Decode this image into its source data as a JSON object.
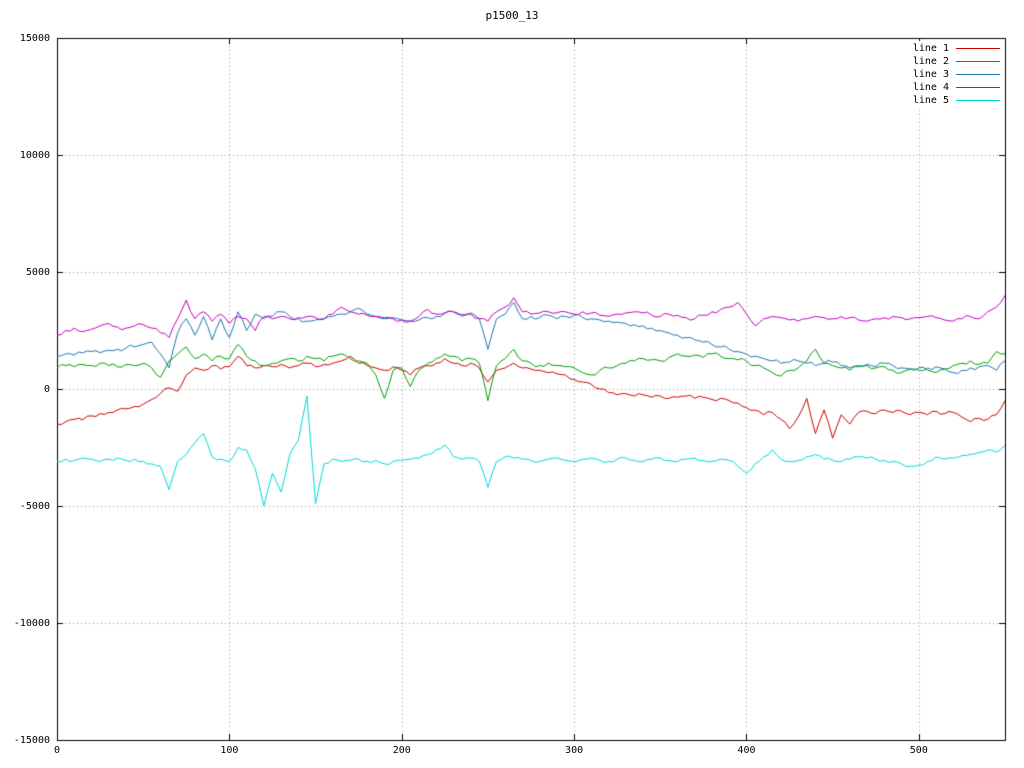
{
  "window": {
    "background": "#ffffff"
  },
  "chart_data": {
    "type": "line",
    "title": "p1500_13",
    "xlabel": "",
    "ylabel": "",
    "xlim": [
      0,
      550
    ],
    "ylim": [
      -15000,
      15000
    ],
    "xticks": [
      0,
      100,
      200,
      300,
      400,
      500
    ],
    "yticks": [
      -15000,
      -10000,
      -5000,
      0,
      5000,
      10000,
      15000
    ],
    "grid": "dotted",
    "grid_color": "#999999",
    "border_color": "#000000",
    "legend_position": "top-right",
    "x_start": 0,
    "x_step": 5,
    "series": [
      {
        "name": "line 1",
        "color": "#cc0000",
        "noise": 80,
        "values": [
          -1500,
          -1400,
          -1300,
          -1320,
          -1150,
          -1050,
          -1000,
          -900,
          -850,
          -750,
          -650,
          -450,
          -200,
          50,
          -100,
          600,
          900,
          800,
          1000,
          850,
          950,
          1400,
          1000,
          900,
          1000,
          950,
          1050,
          900,
          1000,
          1100,
          950,
          1050,
          1100,
          1200,
          1400,
          1100,
          1000,
          900,
          800,
          950,
          800,
          600,
          900,
          1000,
          1100,
          1300,
          1100,
          1000,
          1100,
          900,
          300,
          800,
          900,
          1100,
          900,
          850,
          800,
          700,
          650,
          600,
          400,
          300,
          200,
          0,
          -150,
          -250,
          -200,
          -300,
          -250,
          -350,
          -300,
          -400,
          -350,
          -300,
          -400,
          -350,
          -450,
          -400,
          -500,
          -600,
          -800,
          -900,
          -1100,
          -1000,
          -1300,
          -1700,
          -1200,
          -400,
          -1900,
          -900,
          -2100,
          -1100,
          -1500,
          -1000,
          -950,
          -1050,
          -900,
          -1000,
          -950,
          -1100,
          -1000,
          -1100,
          -950,
          -1050,
          -1000,
          -1200,
          -1400,
          -1250,
          -1300,
          -1100,
          -500
        ]
      },
      {
        "name": "line 2",
        "color": "#00a000",
        "noise": 100,
        "values": [
          900,
          1000,
          950,
          1050,
          1000,
          1100,
          1000,
          950,
          1050,
          1000,
          1100,
          900,
          500,
          1200,
          1500,
          1800,
          1300,
          1500,
          1200,
          1400,
          1300,
          1900,
          1400,
          1200,
          1000,
          1100,
          1200,
          1300,
          1200,
          1400,
          1300,
          1200,
          1400,
          1500,
          1300,
          1200,
          1100,
          600,
          -400,
          800,
          900,
          100,
          800,
          1100,
          1300,
          1500,
          1400,
          1200,
          1300,
          1100,
          -500,
          1000,
          1300,
          1700,
          1200,
          1100,
          1000,
          1100,
          1000,
          950,
          900,
          700,
          600,
          800,
          900,
          1000,
          1100,
          1200,
          1300,
          1250,
          1200,
          1350,
          1500,
          1400,
          1450,
          1350,
          1500,
          1400,
          1300,
          1250,
          1200,
          1000,
          900,
          700,
          550,
          800,
          900,
          1200,
          1700,
          1100,
          1000,
          900,
          800,
          950,
          1000,
          900,
          950,
          800,
          700,
          850,
          900,
          800,
          700,
          850,
          1000,
          1100,
          1200,
          1050,
          1100,
          1600,
          1500
        ]
      },
      {
        "name": "line 3",
        "color": "#1f77b4",
        "noise": 100,
        "values": [
          1400,
          1500,
          1450,
          1550,
          1600,
          1550,
          1650,
          1700,
          1750,
          1800,
          1900,
          2000,
          1500,
          900,
          2400,
          3000,
          2300,
          3100,
          2100,
          3000,
          2200,
          3300,
          2500,
          3200,
          3000,
          3100,
          3300,
          3100,
          3000,
          2900,
          2950,
          3000,
          3100,
          3200,
          3300,
          3450,
          3200,
          3100,
          3000,
          3050,
          2950,
          2900,
          2950,
          3050,
          3100,
          3250,
          3300,
          3200,
          3250,
          3000,
          1700,
          3000,
          3200,
          3700,
          3000,
          3100,
          3050,
          3150,
          3000,
          3100,
          3150,
          3050,
          3000,
          2950,
          2900,
          2850,
          2800,
          2750,
          2700,
          2600,
          2500,
          2400,
          2300,
          2200,
          2100,
          2000,
          1900,
          1800,
          1700,
          1600,
          1500,
          1400,
          1300,
          1200,
          1100,
          1150,
          1200,
          1100,
          1000,
          1100,
          1150,
          1000,
          900,
          1000,
          1050,
          950,
          1100,
          1000,
          900,
          850,
          800,
          900,
          950,
          850,
          700,
          800,
          900,
          950,
          1000,
          800,
          1200
        ]
      },
      {
        "name": "line 4",
        "color": "#bf00bf",
        "noise": 90,
        "values": [
          2300,
          2500,
          2600,
          2450,
          2550,
          2700,
          2800,
          2650,
          2600,
          2700,
          2750,
          2600,
          2400,
          2200,
          3000,
          3800,
          3000,
          3300,
          2900,
          3200,
          2800,
          3100,
          3000,
          2500,
          3100,
          3000,
          3100,
          3000,
          3050,
          3100,
          3050,
          3000,
          3200,
          3500,
          3300,
          3200,
          3150,
          3100,
          3050,
          3000,
          2950,
          2900,
          3100,
          3400,
          3200,
          3250,
          3300,
          3100,
          3200,
          3000,
          2900,
          3300,
          3500,
          3900,
          3300,
          3200,
          3250,
          3300,
          3250,
          3300,
          3200,
          3300,
          3250,
          3150,
          3100,
          3200,
          3250,
          3300,
          3250,
          3150,
          3100,
          3200,
          3150,
          3050,
          3000,
          3150,
          3300,
          3400,
          3500,
          3700,
          3200,
          2700,
          3000,
          3100,
          3050,
          2950,
          2900,
          3000,
          3100,
          3050,
          3000,
          3100,
          3050,
          2950,
          2900,
          3000,
          3050,
          3100,
          3050,
          3000,
          3050,
          3100,
          3050,
          2950,
          2900,
          3000,
          3100,
          3000,
          3300,
          3500,
          4000
        ]
      },
      {
        "name": "line 5",
        "color": "#00d8d8",
        "noise": 80,
        "values": [
          -3100,
          -3000,
          -3050,
          -2950,
          -3000,
          -3100,
          -3000,
          -2950,
          -3050,
          -3000,
          -3100,
          -3200,
          -3300,
          -4300,
          -3100,
          -2800,
          -2300,
          -1900,
          -2900,
          -3000,
          -3100,
          -2500,
          -2600,
          -3400,
          -5000,
          -3600,
          -4400,
          -2800,
          -2200,
          -300,
          -4900,
          -3200,
          -3000,
          -3100,
          -3050,
          -3000,
          -3100,
          -3050,
          -3200,
          -3100,
          -3050,
          -3000,
          -2950,
          -2800,
          -2600,
          -2400,
          -2900,
          -3000,
          -2950,
          -3100,
          -4200,
          -3100,
          -2900,
          -2950,
          -3000,
          -3050,
          -3100,
          -3000,
          -2950,
          -3050,
          -3100,
          -3000,
          -2950,
          -3050,
          -3100,
          -3000,
          -2950,
          -3050,
          -3100,
          -3000,
          -2950,
          -3050,
          -3100,
          -3000,
          -2950,
          -3050,
          -3100,
          -3000,
          -3050,
          -3300,
          -3600,
          -3200,
          -2900,
          -2600,
          -3000,
          -3100,
          -3050,
          -2900,
          -2800,
          -3000,
          -3050,
          -3100,
          -3000,
          -2900,
          -2950,
          -3000,
          -3050,
          -3100,
          -3200,
          -3300,
          -3250,
          -3100,
          -2900,
          -3000,
          -2950,
          -2850,
          -2800,
          -2700,
          -2600,
          -2700,
          -2400
        ]
      }
    ]
  }
}
